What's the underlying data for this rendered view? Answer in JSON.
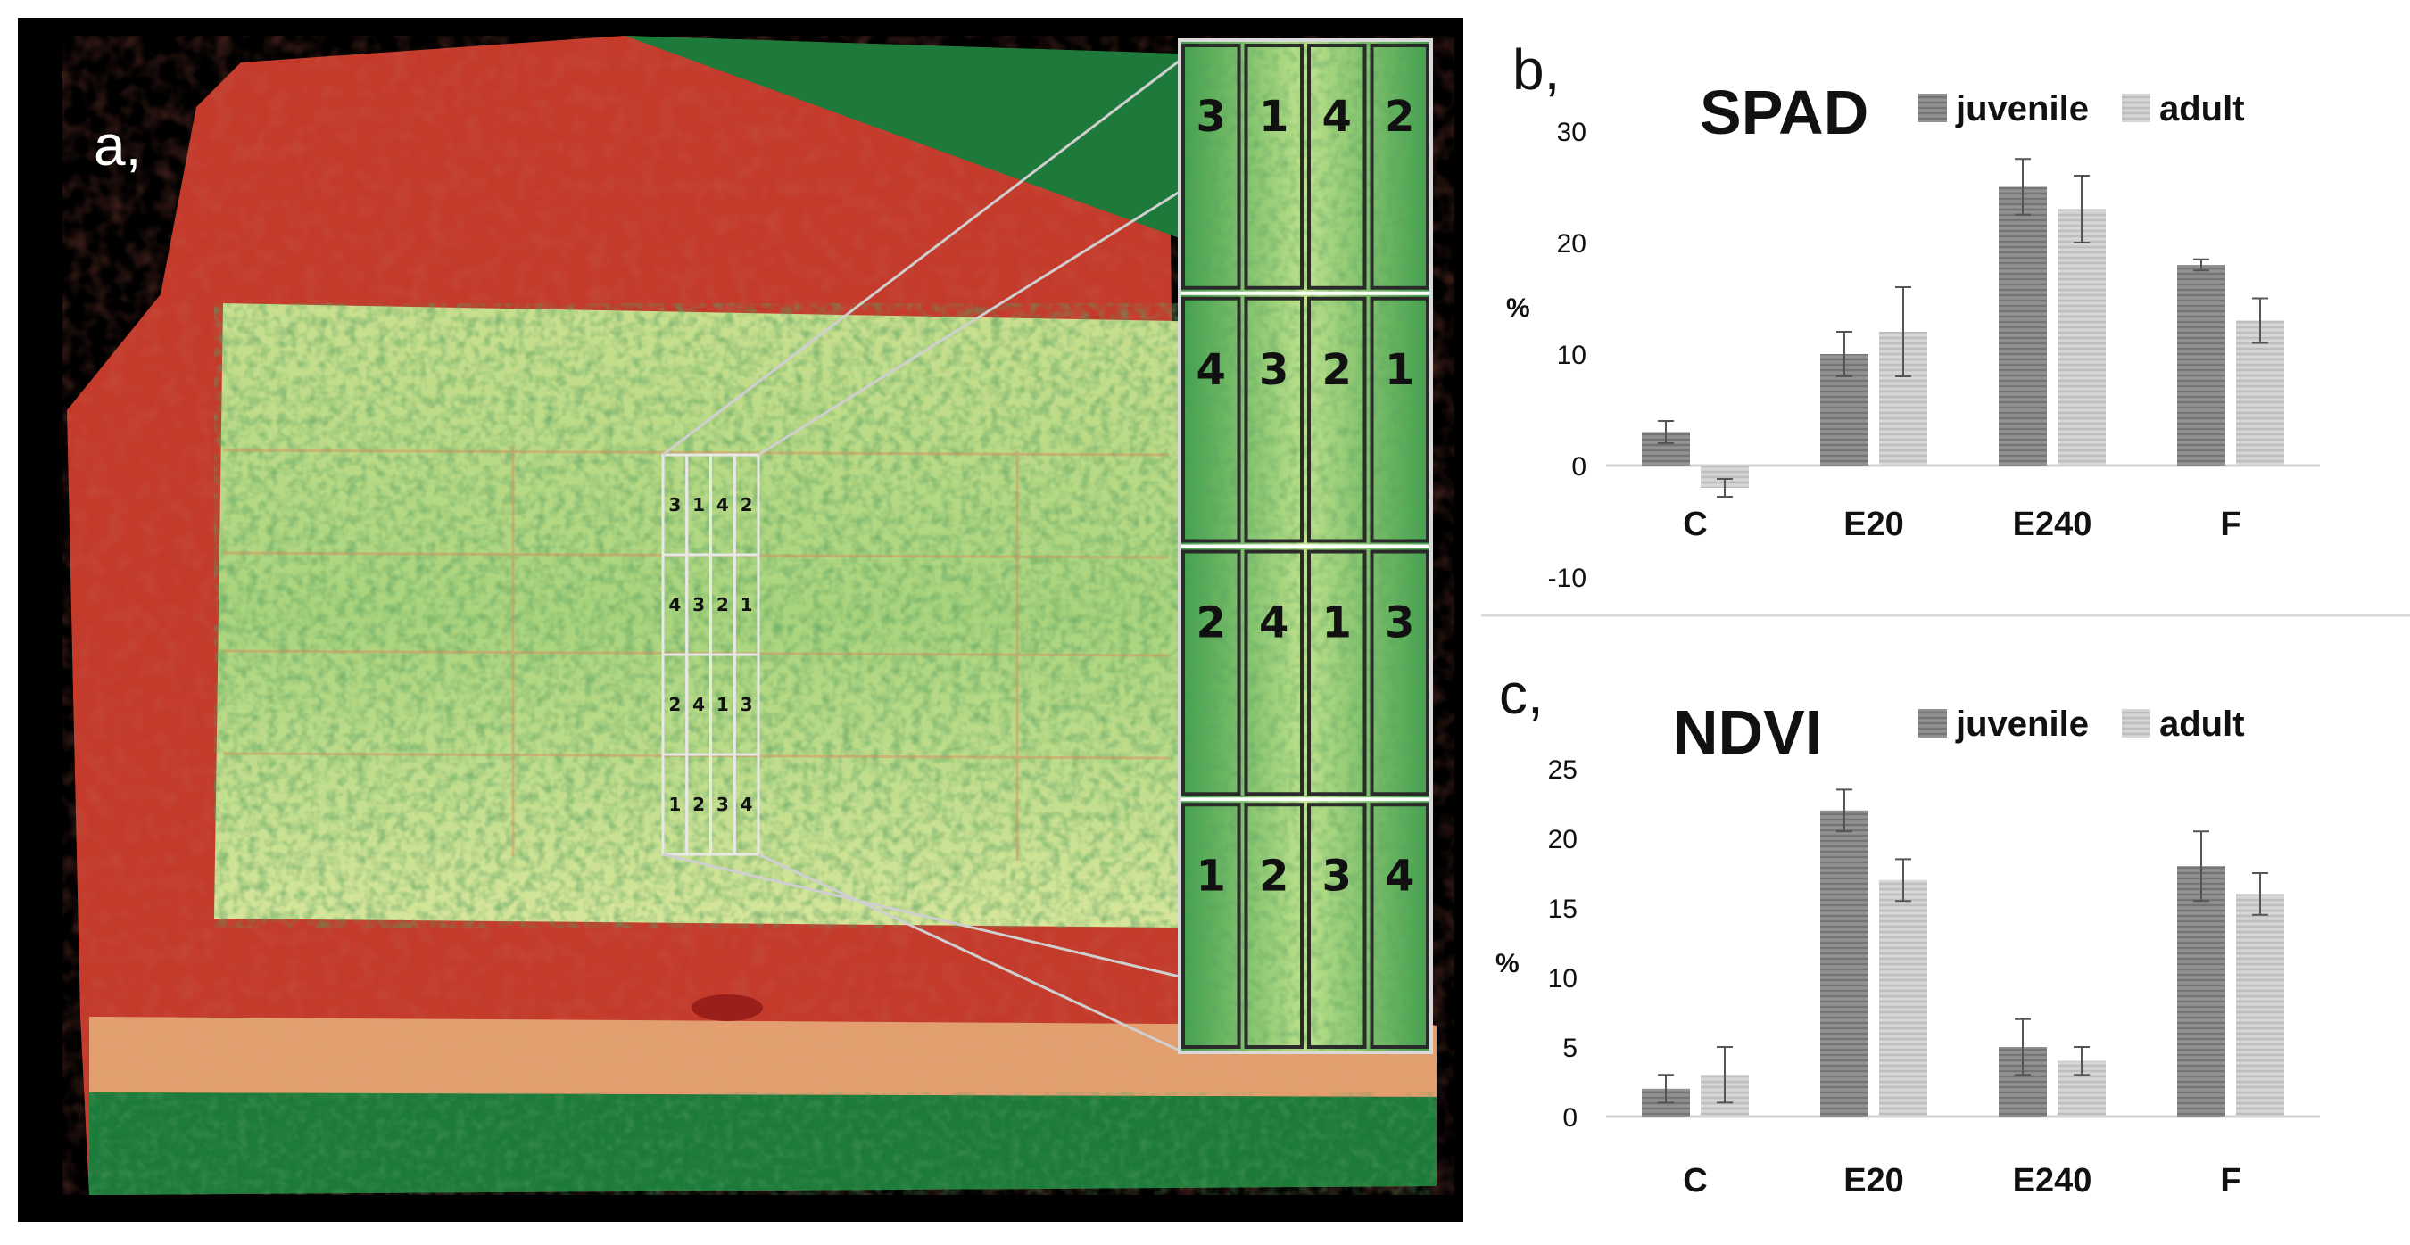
{
  "panels": {
    "a": {
      "letter": "a,"
    },
    "b": {
      "letter": "b,"
    },
    "c": {
      "letter": "c,"
    }
  },
  "plot_grid": [
    [
      "3",
      "1",
      "4",
      "2"
    ],
    [
      "4",
      "3",
      "2",
      "1"
    ],
    [
      "2",
      "4",
      "1",
      "3"
    ],
    [
      "1",
      "2",
      "3",
      "4"
    ]
  ],
  "colors": {
    "juvenile": "#7f7f7f",
    "adult": "#c9c9c9",
    "field_green": "#1f7a3c",
    "field_light_green": "#b7dc84",
    "field_red": "#c8372a"
  },
  "chart_data": [
    {
      "type": "bar",
      "title": "SPAD",
      "ylabel": "%",
      "xlabel": "",
      "categories": [
        "C",
        "E20",
        "E240",
        "F"
      ],
      "ylim": [
        -10,
        30
      ],
      "yticks": [
        -10,
        0,
        10,
        20,
        30
      ],
      "legend": "top",
      "grid": false,
      "series": [
        {
          "name": "juvenile",
          "values": [
            3,
            10,
            25,
            18
          ],
          "errors": [
            1,
            2,
            2.5,
            0.5
          ]
        },
        {
          "name": "adult",
          "values": [
            -2,
            12,
            23,
            13
          ],
          "errors": [
            0.8,
            4,
            3,
            2
          ]
        }
      ]
    },
    {
      "type": "bar",
      "title": "NDVI",
      "ylabel": "%",
      "xlabel": "",
      "categories": [
        "C",
        "E20",
        "E240",
        "F"
      ],
      "ylim": [
        0,
        25
      ],
      "yticks": [
        0,
        5,
        10,
        15,
        20,
        25
      ],
      "legend": "top",
      "grid": false,
      "series": [
        {
          "name": "juvenile",
          "values": [
            2,
            22,
            5,
            18
          ],
          "errors": [
            1,
            1.5,
            2,
            2.5
          ]
        },
        {
          "name": "adult",
          "values": [
            3,
            17,
            4,
            16
          ],
          "errors": [
            2,
            1.5,
            1,
            1.5
          ]
        }
      ]
    }
  ]
}
